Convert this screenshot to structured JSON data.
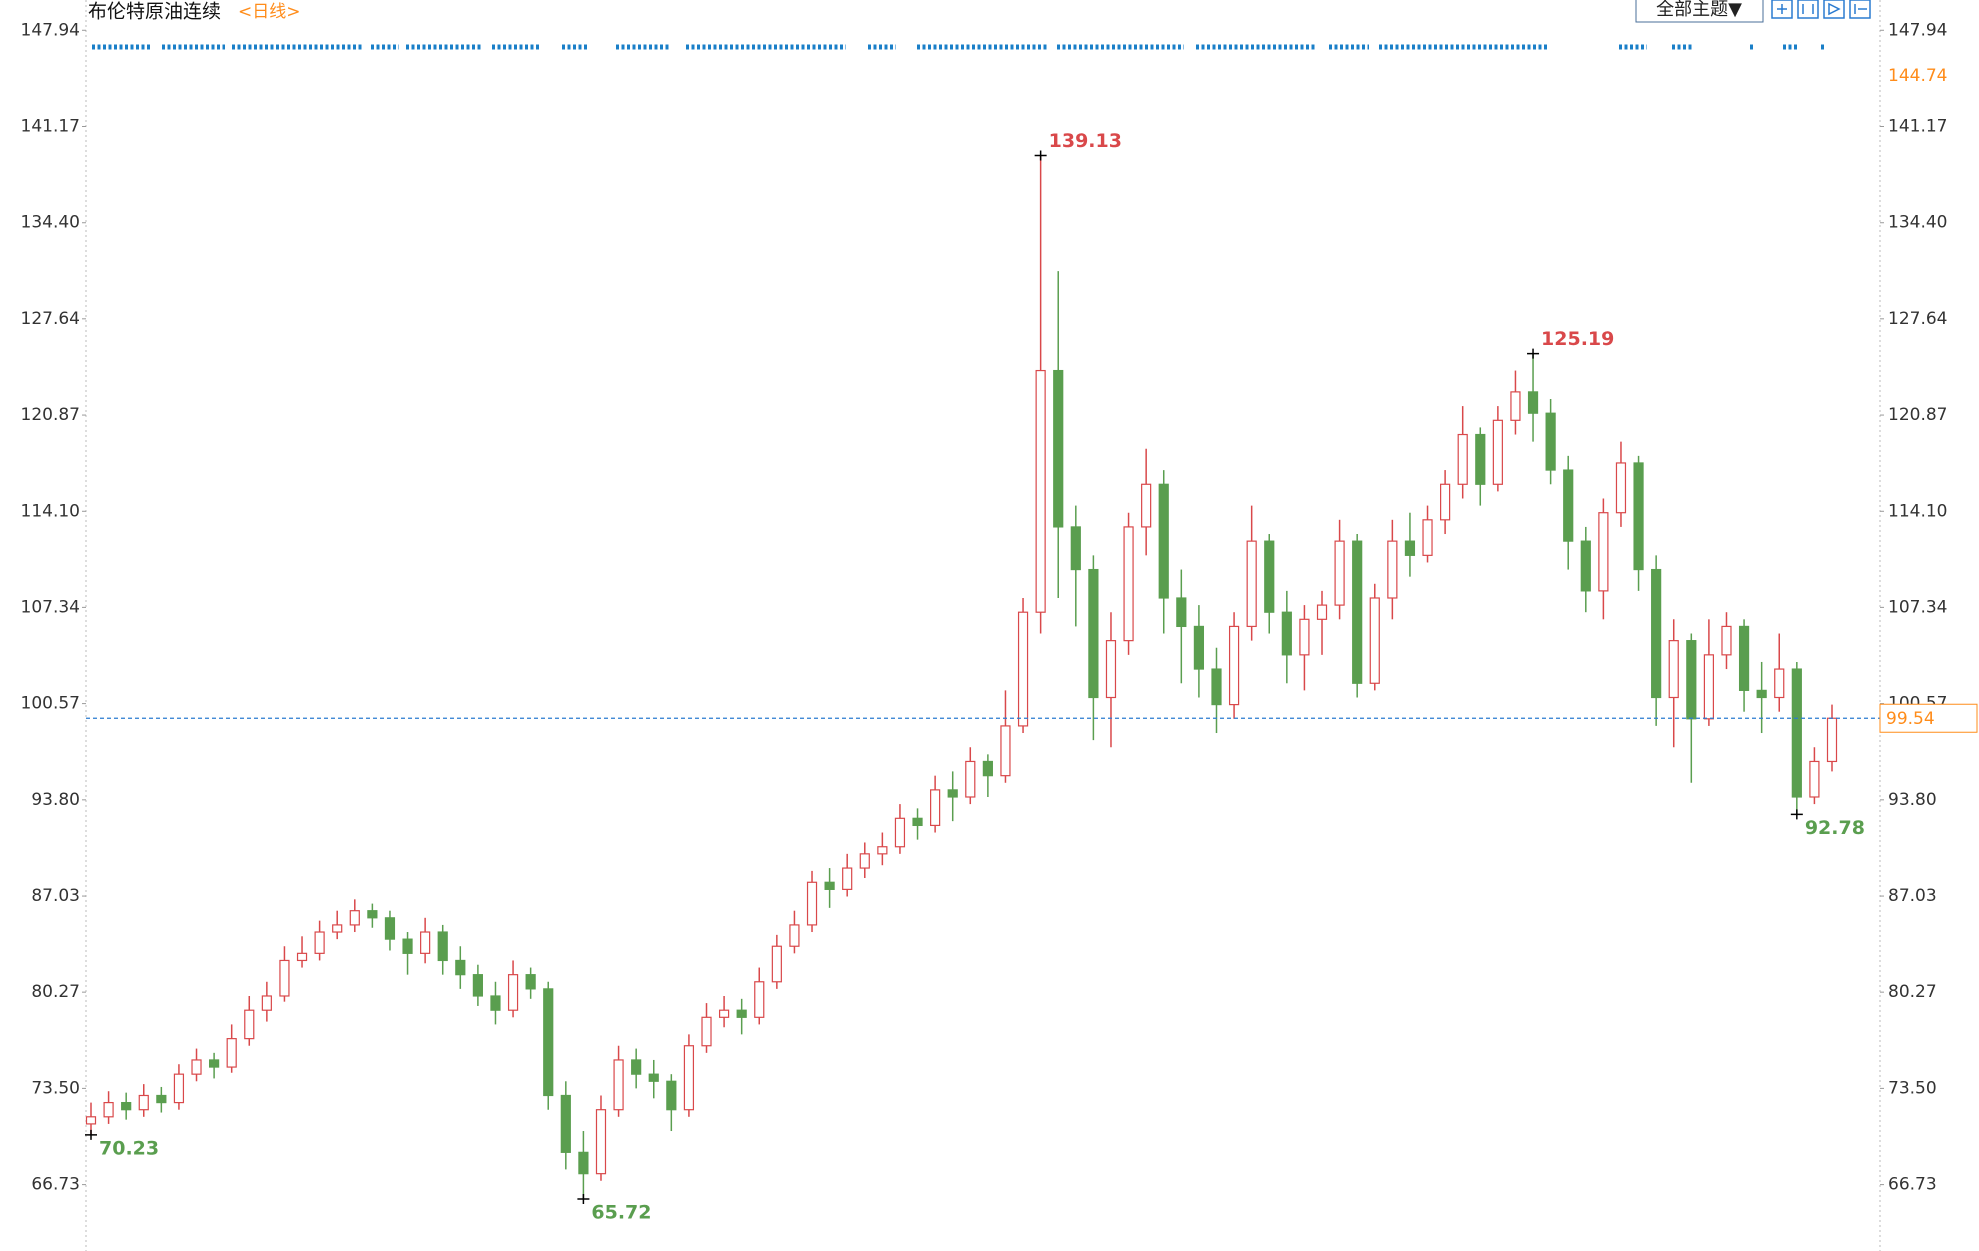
{
  "chart_data": {
    "type": "candlestick",
    "title": "布伦特原油连续",
    "subtitle": "<日线>",
    "ylim": [
      62.2,
      150.07
    ],
    "yticks": [
      147.94,
      141.17,
      {
        "value": 134.4,
        "label": "134.40"
      },
      127.64,
      120.87,
      {
        "value": 114.1,
        "label": "114.10"
      },
      107.34,
      100.57,
      {
        "value": 93.8,
        "label": "93.80"
      },
      87.03,
      80.27,
      {
        "value": 73.5,
        "label": "73.50"
      },
      66.73
    ],
    "up_color": "#d9484a",
    "down_color": "#5a9e4f",
    "marker_color": "#ff8c1a",
    "series": [
      {
        "name": "布伦特原油连续",
        "open": [
          71.0,
          71.5,
          72.5,
          72.0,
          73.0,
          72.5,
          74.5,
          75.5,
          75.0,
          77.0,
          79.0,
          80.0,
          82.5,
          83.0,
          84.5,
          85.0,
          86.0,
          85.5,
          84.0,
          83.0,
          84.5,
          82.5,
          81.5,
          80.0,
          79.0,
          81.5,
          80.5,
          73.0,
          69.0,
          67.5,
          72.0,
          75.5,
          74.5,
          74.0,
          72.0,
          76.5,
          78.5,
          79.0,
          78.5,
          81.0,
          83.5,
          85.0,
          88.0,
          87.5,
          89.0,
          90.0,
          90.5,
          92.5,
          92.0,
          94.5,
          94.0,
          96.5,
          95.5,
          99.0,
          107.0,
          124.0,
          113.0,
          110.0,
          101.0,
          105.0,
          113.0,
          116.0,
          108.0,
          106.0,
          103.0,
          100.5,
          106.0,
          112.0,
          107.0,
          104.0,
          106.5,
          107.5,
          112.0,
          102.0,
          108.0,
          112.0,
          111.0,
          113.5,
          116.0,
          119.5,
          116.0,
          120.5,
          122.5,
          121.0,
          117.0,
          112.0,
          108.5,
          114.0,
          117.5,
          110.0,
          101.0,
          105.0,
          99.5,
          104.0,
          106.0,
          101.5,
          101.0,
          103.0,
          94.0,
          96.5
        ],
        "high": [
          72.5,
          73.3,
          73.2,
          73.8,
          73.6,
          75.2,
          76.3,
          76.0,
          78.0,
          80.0,
          81.0,
          83.5,
          84.2,
          85.3,
          86.0,
          86.8,
          86.5,
          86.0,
          84.5,
          85.5,
          85.0,
          83.5,
          82.2,
          81.0,
          82.5,
          82.0,
          81.0,
          74.0,
          70.5,
          73.0,
          76.5,
          76.3,
          75.5,
          74.5,
          77.3,
          79.5,
          80.0,
          79.8,
          82.0,
          84.3,
          86.0,
          88.8,
          89.0,
          90.0,
          90.8,
          91.5,
          93.5,
          93.2,
          95.5,
          95.8,
          97.5,
          97.0,
          101.5,
          108.0,
          139.13,
          131.0,
          114.5,
          111.0,
          107.0,
          114.0,
          118.5,
          117.0,
          110.0,
          107.5,
          104.5,
          107.0,
          114.5,
          112.5,
          108.5,
          107.5,
          108.5,
          113.5,
          112.5,
          109.0,
          113.5,
          114.0,
          114.5,
          117.0,
          121.5,
          120.0,
          121.5,
          124.0,
          125.19,
          122.0,
          118.0,
          113.0,
          115.0,
          119.0,
          118.0,
          111.0,
          106.5,
          105.5,
          106.5,
          107.0,
          106.5,
          103.5,
          105.5,
          103.5,
          97.5,
          100.5
        ],
        "low": [
          70.23,
          71.0,
          71.3,
          71.5,
          71.8,
          72.0,
          74.0,
          74.2,
          74.6,
          76.5,
          78.2,
          79.6,
          82.0,
          82.5,
          84.0,
          84.5,
          84.8,
          83.2,
          81.5,
          82.3,
          81.5,
          80.5,
          79.3,
          78.0,
          78.5,
          79.8,
          72.0,
          67.8,
          65.72,
          67.0,
          71.5,
          73.5,
          72.8,
          70.5,
          71.5,
          76.0,
          77.8,
          77.3,
          78.0,
          80.5,
          83.0,
          84.5,
          86.2,
          87.0,
          88.3,
          89.2,
          90.0,
          91.0,
          91.5,
          92.3,
          93.5,
          94.0,
          95.0,
          98.5,
          105.5,
          108.0,
          106.0,
          98.0,
          97.5,
          104.0,
          111.0,
          105.5,
          102.0,
          101.0,
          98.5,
          99.5,
          105.0,
          105.5,
          102.0,
          101.5,
          104.0,
          106.5,
          101.0,
          101.5,
          106.5,
          109.5,
          110.5,
          112.5,
          115.0,
          114.5,
          115.5,
          119.5,
          119.0,
          116.0,
          110.0,
          107.0,
          106.5,
          113.0,
          108.5,
          99.0,
          97.5,
          95.0,
          99.0,
          103.0,
          100.0,
          98.5,
          100.0,
          92.78,
          93.5,
          95.8
        ],
        "close": [
          71.5,
          72.5,
          72.0,
          73.0,
          72.5,
          74.5,
          75.5,
          75.0,
          77.0,
          79.0,
          80.0,
          82.5,
          83.0,
          84.5,
          85.0,
          86.0,
          85.5,
          84.0,
          83.0,
          84.5,
          82.5,
          81.5,
          80.0,
          79.0,
          81.5,
          80.5,
          73.0,
          69.0,
          67.5,
          72.0,
          75.5,
          74.5,
          74.0,
          72.0,
          76.5,
          78.5,
          79.0,
          78.5,
          81.0,
          83.5,
          85.0,
          88.0,
          87.5,
          89.0,
          90.0,
          90.5,
          92.5,
          92.0,
          94.5,
          94.0,
          96.5,
          95.5,
          99.0,
          107.0,
          124.0,
          113.0,
          110.0,
          101.0,
          105.0,
          113.0,
          116.0,
          108.0,
          106.0,
          103.0,
          100.5,
          106.0,
          112.0,
          107.0,
          104.0,
          106.5,
          107.5,
          112.0,
          102.0,
          108.0,
          112.0,
          111.0,
          113.5,
          116.0,
          119.5,
          116.0,
          120.5,
          122.5,
          121.0,
          117.0,
          112.0,
          108.5,
          114.0,
          117.5,
          110.0,
          101.0,
          105.0,
          99.5,
          104.0,
          106.0,
          101.5,
          101.0,
          103.0,
          94.0,
          96.5,
          99.54
        ]
      }
    ],
    "annotations": {
      "highs": [
        139.13,
        125.19
      ],
      "lows": [
        70.23,
        65.72,
        92.78
      ]
    },
    "right_axis_marker": 144.74
  },
  "toolbar": {
    "theme_button": "全部主题▼"
  }
}
